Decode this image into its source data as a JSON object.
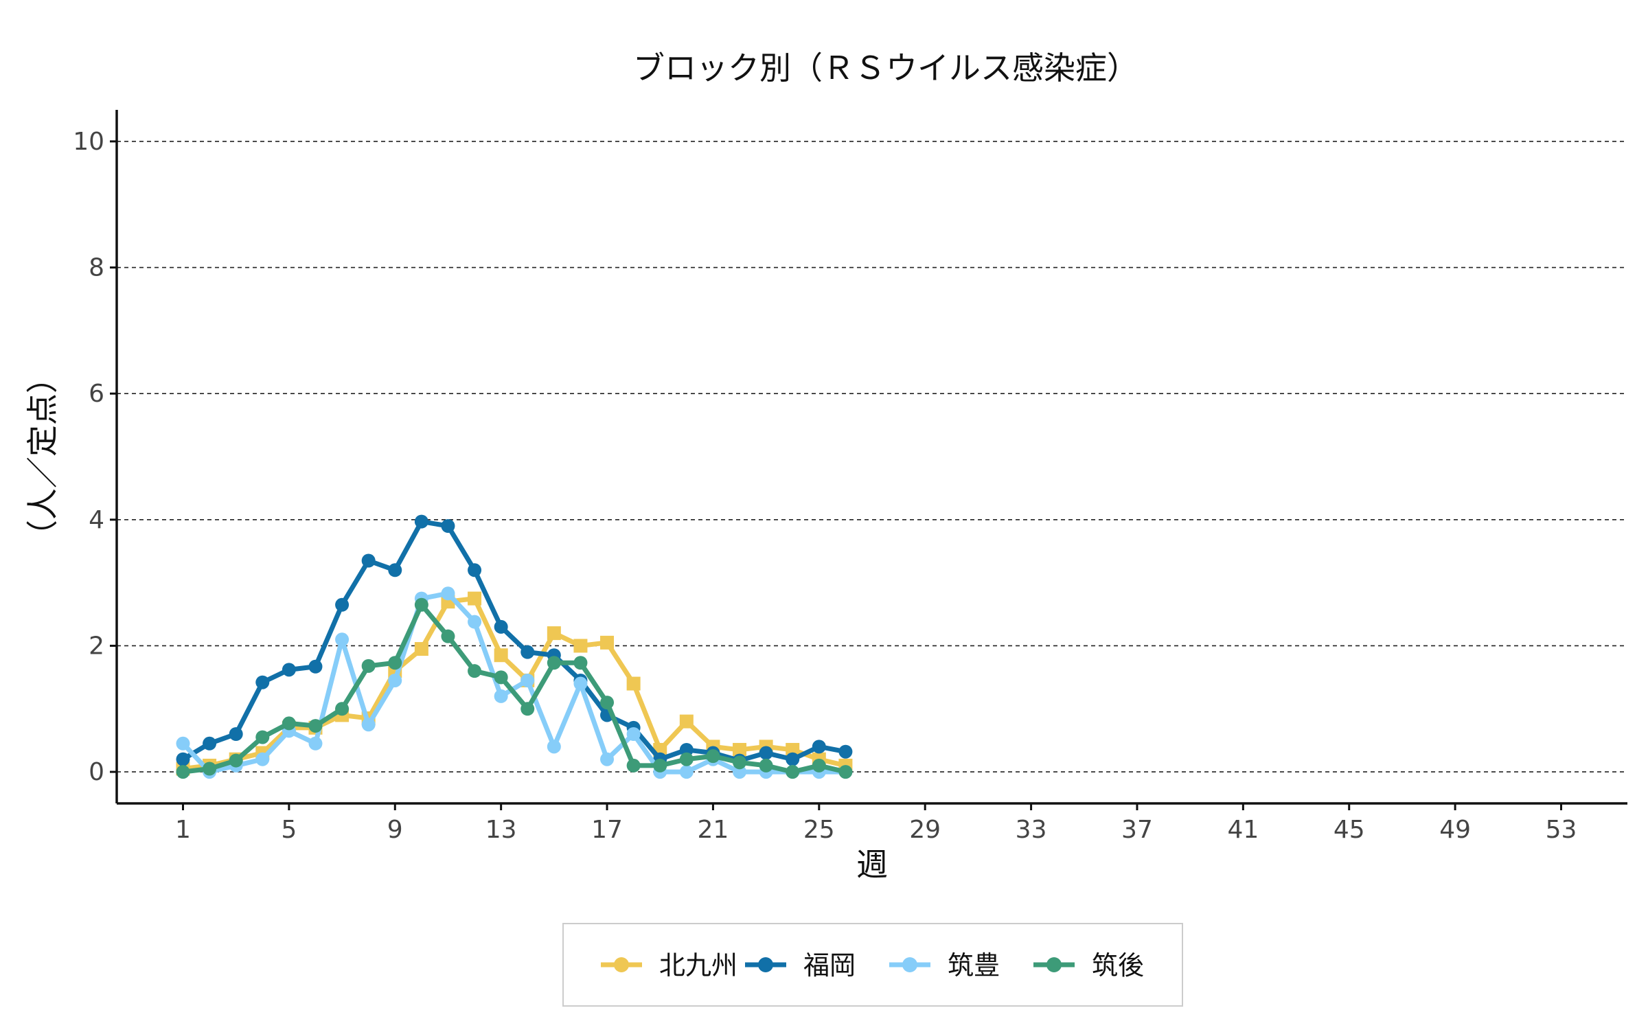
{
  "chart_data": {
    "type": "line",
    "title": "ブロック別（ＲＳウイルス感染症）",
    "xlabel": "週",
    "ylabel": "（人／定点）",
    "x": [
      1,
      2,
      3,
      4,
      5,
      6,
      7,
      8,
      9,
      10,
      11,
      12,
      13,
      14,
      15,
      16,
      17,
      18,
      19,
      20,
      21,
      22,
      23,
      24,
      25,
      26
    ],
    "xlim": [
      -1.5,
      55.5
    ],
    "ylim": [
      -0.5,
      10.5
    ],
    "xticks": [
      "1",
      "5",
      "9",
      "13",
      "17",
      "21",
      "25",
      "29",
      "33",
      "37",
      "41",
      "45",
      "49",
      "53"
    ],
    "yticks": [
      "0",
      "2",
      "4",
      "6",
      "8",
      "10"
    ],
    "grid": "horizontal dashed",
    "legend_position": "bottom",
    "series": [
      {
        "name": "北九州",
        "color": "#EFC753",
        "marker": "square",
        "values": [
          0.05,
          0.1,
          0.2,
          0.3,
          0.7,
          0.7,
          0.9,
          0.85,
          1.6,
          1.95,
          2.7,
          2.75,
          1.85,
          1.45,
          2.2,
          2.0,
          2.05,
          1.4,
          0.35,
          0.8,
          0.4,
          0.35,
          0.4,
          0.35,
          0.2,
          0.1
        ]
      },
      {
        "name": "福岡",
        "color": "#1170A8",
        "marker": "circle",
        "values": [
          0.2,
          0.45,
          0.6,
          1.42,
          1.62,
          1.67,
          2.65,
          3.35,
          3.2,
          3.97,
          3.9,
          3.2,
          2.3,
          1.9,
          1.85,
          1.45,
          0.9,
          0.7,
          0.2,
          0.35,
          0.3,
          0.18,
          0.3,
          0.2,
          0.4,
          0.32
        ]
      },
      {
        "name": "筑豊",
        "color": "#86CDF9",
        "marker": "circle",
        "values": [
          0.45,
          0.0,
          0.1,
          0.2,
          0.65,
          0.45,
          2.1,
          0.75,
          1.45,
          2.75,
          2.83,
          2.38,
          1.2,
          1.45,
          0.4,
          1.4,
          0.2,
          0.6,
          0.0,
          0.0,
          0.2,
          0.0,
          0.0,
          0.0,
          0.0,
          0.0
        ]
      },
      {
        "name": "筑後",
        "color": "#3D9B78",
        "marker": "circle",
        "values": [
          0.0,
          0.05,
          0.18,
          0.55,
          0.77,
          0.73,
          1.0,
          1.68,
          1.73,
          2.65,
          2.15,
          1.6,
          1.5,
          1.0,
          1.73,
          1.73,
          1.1,
          0.1,
          0.1,
          0.2,
          0.25,
          0.15,
          0.1,
          0.0,
          0.1,
          0.0
        ]
      }
    ]
  }
}
